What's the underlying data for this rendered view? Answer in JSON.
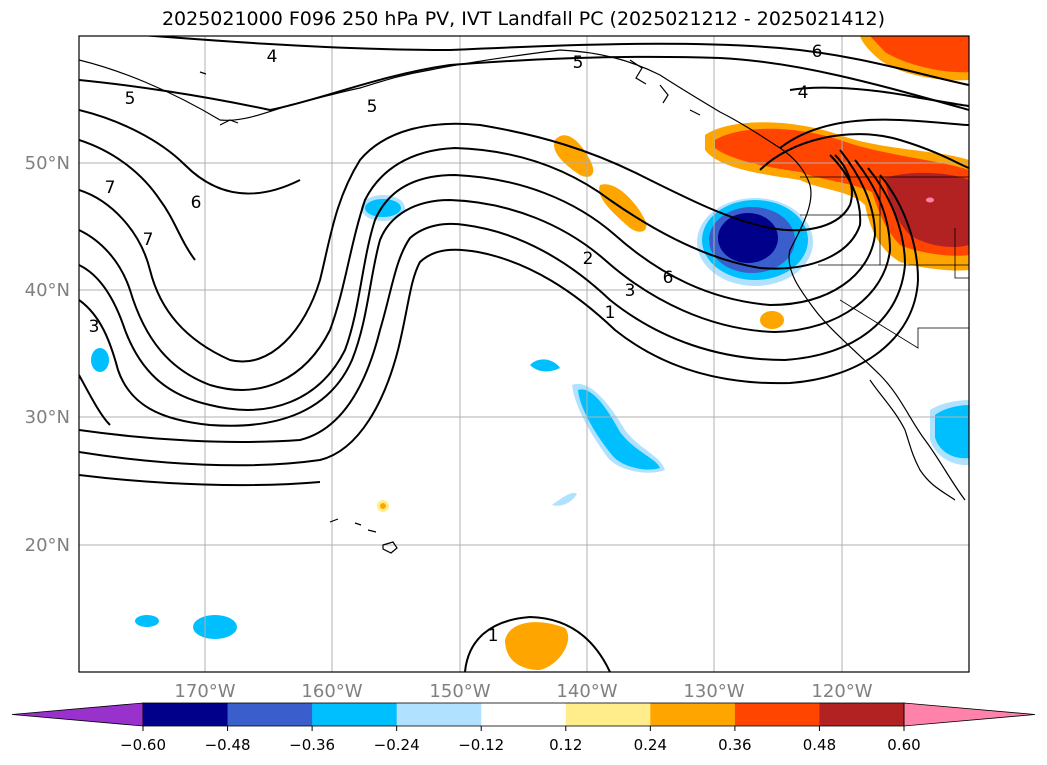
{
  "title": "2025021000 F096 250 hPa PV, IVT Landfall PC (2025021212 - 2025021412)",
  "lat_labels": [
    "50°N",
    "40°N",
    "30°N",
    "20°N"
  ],
  "lon_labels": [
    "170°W",
    "160°W",
    "150°W",
    "140°W",
    "130°W",
    "120°W"
  ],
  "colorbar": {
    "colors": [
      "#9932cc",
      "#00008b",
      "#3a5fcd",
      "#00bfff",
      "#b0e2ff",
      "#ffffff",
      "#ffec8b",
      "#ffa500",
      "#ff4500",
      "#b22222",
      "#ff82ab"
    ],
    "tick_labels": [
      "−0.60",
      "−0.48",
      "−0.36",
      "−0.24",
      "−0.12",
      "0.12",
      "0.24",
      "0.36",
      "0.48",
      "0.60"
    ]
  },
  "contour_labels": [
    "4",
    "5",
    "6",
    "5",
    "4",
    "5",
    "7",
    "6",
    "7",
    "3",
    "2",
    "3",
    "1",
    "6",
    "1"
  ]
}
